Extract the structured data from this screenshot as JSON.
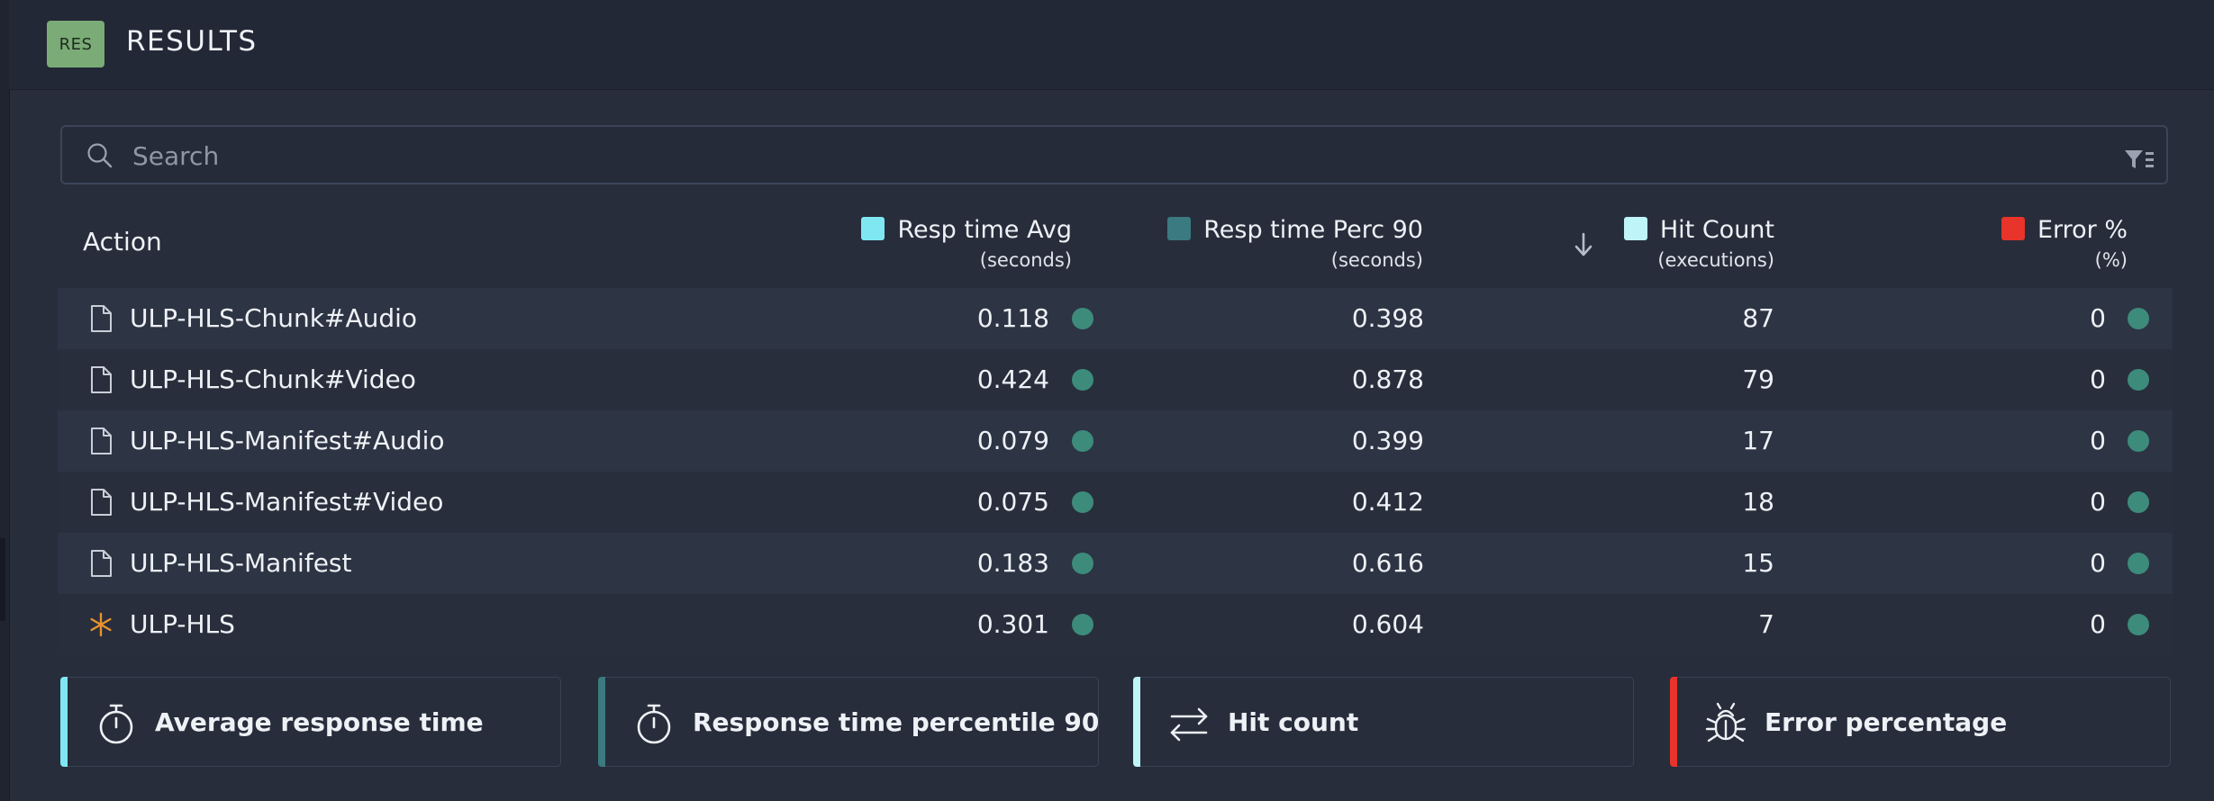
{
  "header": {
    "badge": "RES",
    "title": "RESULTS"
  },
  "search": {
    "placeholder": "Search",
    "value": ""
  },
  "table": {
    "action_header": "Action",
    "columns": [
      {
        "label": "Resp time Avg",
        "unit": "(seconds)",
        "color": "#7fe7f2"
      },
      {
        "label": "Resp time Perc 90",
        "unit": "(seconds)",
        "color": "#3a7a80"
      },
      {
        "label": "Hit Count",
        "unit": "(executions)",
        "color": "#bff4f8"
      },
      {
        "label": "Error %",
        "unit": "(%)",
        "color": "#e8342a"
      }
    ],
    "rows": [
      {
        "icon": "file-icon",
        "name": "ULP-HLS-Chunk#Audio",
        "avg": "0.118",
        "p90": "0.398",
        "hits": "87",
        "err": "0"
      },
      {
        "icon": "file-icon",
        "name": "ULP-HLS-Chunk#Video",
        "avg": "0.424",
        "p90": "0.878",
        "hits": "79",
        "err": "0"
      },
      {
        "icon": "file-icon",
        "name": "ULP-HLS-Manifest#Audio",
        "avg": "0.079",
        "p90": "0.399",
        "hits": "17",
        "err": "0"
      },
      {
        "icon": "file-icon",
        "name": "ULP-HLS-Manifest#Video",
        "avg": "0.075",
        "p90": "0.412",
        "hits": "18",
        "err": "0"
      },
      {
        "icon": "file-icon",
        "name": "ULP-HLS-Manifest",
        "avg": "0.183",
        "p90": "0.616",
        "hits": "15",
        "err": "0"
      },
      {
        "icon": "asterisk-icon",
        "name": "ULP-HLS",
        "avg": "0.301",
        "p90": "0.604",
        "hits": "7",
        "err": "0"
      }
    ],
    "status_dot_color": "#3d8b7b"
  },
  "cards": [
    {
      "label": "Average response time",
      "icon": "stopwatch-icon",
      "accent": "#7fe7f2"
    },
    {
      "label": "Response time percentile 90",
      "icon": "stopwatch-icon",
      "accent": "#3a7a80"
    },
    {
      "label": "Hit count",
      "icon": "arrows-exchange-icon",
      "accent": "#bff4f8"
    },
    {
      "label": "Error percentage",
      "icon": "bug-icon",
      "accent": "#e8342a"
    }
  ]
}
